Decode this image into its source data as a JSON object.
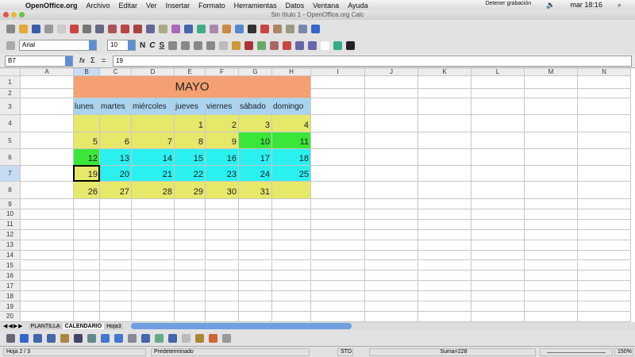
{
  "menubar": {
    "app": "OpenOffice.org",
    "items": [
      "Archivo",
      "Editar",
      "Ver",
      "Insertar",
      "Formato",
      "Herramientas",
      "Datos",
      "Ventana",
      "Ayuda"
    ],
    "recording": "Detener grabación",
    "clock": "mar 18:16"
  },
  "window": {
    "title": "Sin título 1 - OpenOffice.org Calc"
  },
  "format": {
    "font": "Arial",
    "size": "10",
    "bold": "N",
    "italic": "C",
    "underline": "S"
  },
  "formula": {
    "cell_ref": "B7",
    "fx": "fx",
    "sum": "Σ",
    "eq": "=",
    "value": "19"
  },
  "columns": [
    "A",
    "B",
    "C",
    "D",
    "E",
    "F",
    "G",
    "H",
    "I",
    "J",
    "K",
    "L",
    "M",
    "N"
  ],
  "rows": [
    "1",
    "2",
    "3",
    "4",
    "5",
    "6",
    "7",
    "8",
    "9",
    "10",
    "11",
    "12",
    "13",
    "14",
    "15",
    "16",
    "17",
    "18",
    "19",
    "20"
  ],
  "colors": {
    "orange": "#f4a073",
    "blue": "#a8d4f0",
    "yellow": "#e6e86a",
    "green": "#3be63b",
    "cyan": "#2af0f0"
  },
  "calendar": {
    "title": "MAYO",
    "days": [
      "lunes",
      "martes",
      "miércoles",
      "jueves",
      "viernes",
      "sábado",
      "domingo"
    ],
    "weeks": [
      {
        "vals": [
          "",
          "",
          "",
          "1",
          "2",
          "3",
          "4"
        ],
        "fill": [
          "yellow",
          "yellow",
          "yellow",
          "yellow",
          "yellow",
          "yellow",
          "yellow"
        ]
      },
      {
        "vals": [
          "5",
          "6",
          "7",
          "8",
          "9",
          "10",
          "11"
        ],
        "fill": [
          "yellow",
          "yellow",
          "yellow",
          "yellow",
          "yellow",
          "green",
          "green"
        ]
      },
      {
        "vals": [
          "12",
          "13",
          "14",
          "15",
          "16",
          "17",
          "18"
        ],
        "fill": [
          "green",
          "cyan",
          "cyan",
          "cyan",
          "cyan",
          "cyan",
          "cyan"
        ]
      },
      {
        "vals": [
          "19",
          "20",
          "21",
          "22",
          "23",
          "24",
          "25"
        ],
        "fill": [
          "yellow",
          "cyan",
          "cyan",
          "cyan",
          "cyan",
          "cyan",
          "cyan"
        ]
      },
      {
        "vals": [
          "26",
          "27",
          "28",
          "29",
          "30",
          "31",
          ""
        ],
        "fill": [
          "yellow",
          "yellow",
          "yellow",
          "yellow",
          "yellow",
          "yellow",
          "yellow"
        ]
      }
    ]
  },
  "sheets": [
    "PLANTILLA",
    "CALENDARIO",
    "Hoja3"
  ],
  "status": {
    "sheet": "Hoja 2 / 3",
    "style": "Predeterminado",
    "mode": "STD",
    "sum": "Suma=228",
    "zoom": "150%"
  }
}
